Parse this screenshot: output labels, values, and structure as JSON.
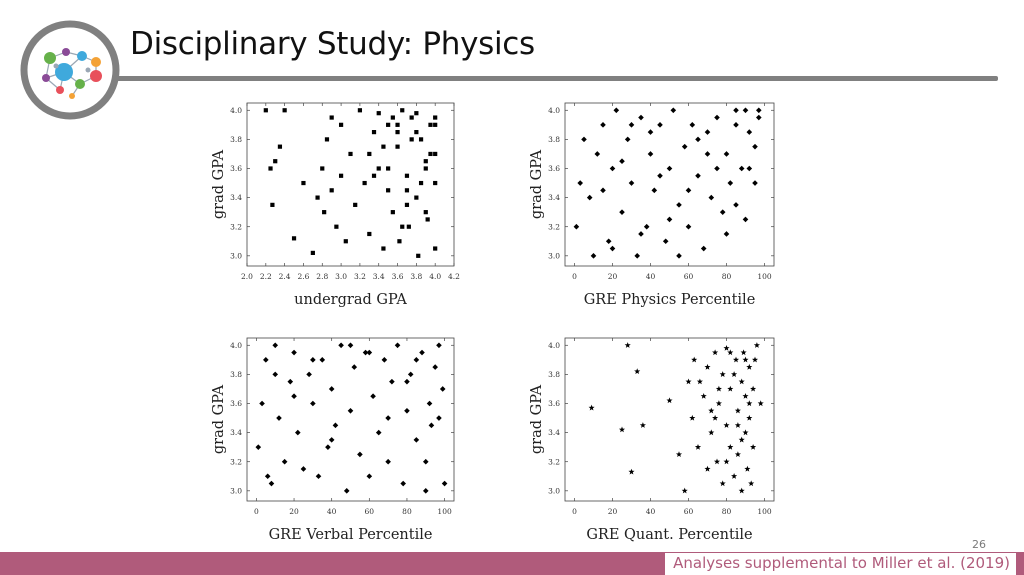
{
  "slide": {
    "title": "Disciplinary Study: Physics",
    "number": "26",
    "footer": "Analyses supplemental to Miller et al. (2019)"
  },
  "logo": {
    "icon": "molecule-network-icon",
    "colors": [
      "#66b14a",
      "#e8505b",
      "#3fa9dc",
      "#f4a236",
      "#8a4b97"
    ]
  },
  "chart_data": [
    {
      "type": "scatter",
      "marker": "square",
      "xlabel": "undergrad GPA",
      "ylabel": "grad GPA",
      "xlim": [
        2.0,
        4.2
      ],
      "ylim": [
        2.93,
        4.05
      ],
      "xticks": [
        2.0,
        2.2,
        2.4,
        2.6,
        2.8,
        3.0,
        3.2,
        3.4,
        3.6,
        3.8,
        4.0,
        4.2
      ],
      "yticks": [
        3.0,
        3.2,
        3.4,
        3.6,
        3.8,
        4.0
      ],
      "x": [
        2.2,
        2.4,
        2.25,
        2.27,
        2.3,
        2.35,
        2.5,
        2.6,
        2.7,
        2.75,
        2.8,
        2.82,
        2.85,
        2.9,
        2.9,
        2.95,
        3.0,
        3.0,
        3.05,
        3.1,
        3.15,
        3.2,
        3.25,
        3.3,
        3.35,
        3.4,
        3.45,
        3.5,
        3.55,
        3.6,
        3.62,
        3.65,
        3.7,
        3.72,
        3.75,
        3.8,
        3.82,
        3.85,
        3.9,
        3.92,
        3.95,
        4.0,
        4.0,
        4.0,
        3.3,
        3.4,
        3.5,
        3.6,
        3.7,
        3.8,
        3.9,
        4.0,
        3.35,
        3.45,
        3.55,
        3.65,
        3.75,
        3.85,
        3.95,
        3.5,
        3.6,
        3.7,
        3.8,
        3.9,
        4.0
      ],
      "y": [
        4.0,
        4.0,
        3.6,
        3.35,
        3.65,
        3.75,
        3.12,
        3.5,
        3.02,
        3.4,
        3.6,
        3.3,
        3.8,
        3.45,
        3.95,
        3.2,
        3.55,
        3.9,
        3.1,
        3.7,
        3.35,
        4.0,
        3.5,
        3.15,
        3.85,
        3.6,
        3.05,
        3.9,
        3.3,
        3.75,
        3.1,
        4.0,
        3.55,
        3.2,
        3.95,
        3.4,
        3.0,
        3.8,
        3.65,
        3.25,
        3.9,
        3.5,
        3.7,
        3.95,
        3.7,
        3.98,
        3.45,
        3.9,
        3.35,
        3.85,
        3.6,
        3.05,
        3.55,
        3.75,
        3.95,
        3.2,
        3.8,
        3.5,
        3.7,
        3.6,
        3.85,
        3.45,
        3.98,
        3.3,
        3.9
      ]
    },
    {
      "type": "scatter",
      "marker": "diamond",
      "xlabel": "GRE Physics Percentile",
      "ylabel": "grad GPA",
      "xlim": [
        -5,
        105
      ],
      "ylim": [
        2.93,
        4.05
      ],
      "xticks": [
        0,
        20,
        40,
        60,
        80,
        100
      ],
      "yticks": [
        3.0,
        3.2,
        3.4,
        3.6,
        3.8,
        4.0
      ],
      "x": [
        1,
        3,
        5,
        8,
        10,
        12,
        15,
        18,
        20,
        22,
        25,
        28,
        30,
        33,
        35,
        38,
        40,
        42,
        45,
        48,
        50,
        52,
        55,
        58,
        60,
        62,
        65,
        68,
        70,
        72,
        75,
        78,
        80,
        82,
        85,
        88,
        90,
        92,
        95,
        97,
        15,
        25,
        35,
        45,
        55,
        65,
        75,
        85,
        95,
        30,
        50,
        70,
        90,
        20,
        60,
        80,
        40,
        85,
        92,
        97
      ],
      "y": [
        3.2,
        3.5,
        3.8,
        3.4,
        3.0,
        3.7,
        3.9,
        3.1,
        3.6,
        4.0,
        3.3,
        3.8,
        3.5,
        3.0,
        3.95,
        3.2,
        3.7,
        3.45,
        3.9,
        3.1,
        3.6,
        4.0,
        3.35,
        3.75,
        3.2,
        3.9,
        3.55,
        3.05,
        3.85,
        3.4,
        3.95,
        3.3,
        3.7,
        3.5,
        4.0,
        3.6,
        3.25,
        3.85,
        3.75,
        3.95,
        3.45,
        3.65,
        3.15,
        3.55,
        3.0,
        3.8,
        3.6,
        3.35,
        3.5,
        3.9,
        3.25,
        3.7,
        4.0,
        3.05,
        3.45,
        3.15,
        3.85,
        3.9,
        3.6,
        4.0
      ]
    },
    {
      "type": "scatter",
      "marker": "diamond",
      "xlabel": "GRE Verbal Percentile",
      "ylabel": "grad GPA",
      "xlim": [
        -5,
        105
      ],
      "ylim": [
        2.93,
        4.05
      ],
      "xticks": [
        0,
        20,
        40,
        60,
        80,
        100
      ],
      "yticks": [
        3.0,
        3.2,
        3.4,
        3.6,
        3.8,
        4.0
      ],
      "x": [
        1,
        3,
        5,
        6,
        8,
        10,
        12,
        15,
        18,
        20,
        22,
        25,
        28,
        30,
        33,
        35,
        38,
        40,
        42,
        45,
        48,
        50,
        52,
        55,
        58,
        60,
        62,
        65,
        68,
        70,
        72,
        75,
        78,
        80,
        82,
        85,
        88,
        90,
        92,
        95,
        97,
        99,
        10,
        30,
        50,
        70,
        90,
        20,
        40,
        60,
        80,
        100,
        85,
        93,
        97
      ],
      "y": [
        3.3,
        3.6,
        3.9,
        3.1,
        3.05,
        4.0,
        3.5,
        3.2,
        3.75,
        3.95,
        3.4,
        3.15,
        3.8,
        3.6,
        3.1,
        3.9,
        3.3,
        3.7,
        3.45,
        4.0,
        3.0,
        3.55,
        3.85,
        3.25,
        3.95,
        3.1,
        3.65,
        3.4,
        3.9,
        3.2,
        3.75,
        4.0,
        3.05,
        3.55,
        3.8,
        3.35,
        3.95,
        3.0,
        3.6,
        3.85,
        3.5,
        3.7,
        3.8,
        3.9,
        4.0,
        3.5,
        3.2,
        3.65,
        3.35,
        3.95,
        3.75,
        3.05,
        3.9,
        3.45,
        4.0
      ]
    },
    {
      "type": "scatter",
      "marker": "star",
      "xlabel": "GRE Quant. Percentile",
      "ylabel": "grad GPA",
      "xlim": [
        -5,
        105
      ],
      "ylim": [
        2.93,
        4.05
      ],
      "xticks": [
        0,
        20,
        40,
        60,
        80,
        100
      ],
      "yticks": [
        3.0,
        3.2,
        3.4,
        3.6,
        3.8,
        4.0
      ],
      "x": [
        9,
        25,
        28,
        30,
        33,
        36,
        50,
        55,
        58,
        60,
        62,
        63,
        65,
        68,
        70,
        70,
        72,
        74,
        75,
        76,
        78,
        78,
        80,
        80,
        82,
        82,
        84,
        85,
        86,
        86,
        88,
        88,
        89,
        90,
        90,
        91,
        92,
        92,
        93,
        94,
        95,
        96,
        98,
        72,
        80,
        84,
        88,
        92,
        76,
        86,
        90,
        94,
        66,
        74,
        82
      ],
      "y": [
        3.57,
        3.42,
        4.0,
        3.13,
        3.82,
        3.45,
        3.62,
        3.25,
        3.0,
        3.75,
        3.5,
        3.9,
        3.3,
        3.65,
        3.15,
        3.85,
        3.4,
        3.95,
        3.2,
        3.6,
        3.05,
        3.8,
        3.45,
        3.98,
        3.3,
        3.7,
        3.1,
        3.9,
        3.55,
        3.25,
        3.75,
        3.0,
        3.95,
        3.4,
        3.65,
        3.15,
        3.85,
        3.5,
        3.05,
        3.7,
        3.9,
        4.0,
        3.6,
        3.55,
        3.2,
        3.8,
        3.35,
        3.6,
        3.7,
        3.45,
        3.9,
        3.3,
        3.75,
        3.5,
        3.95
      ]
    }
  ]
}
